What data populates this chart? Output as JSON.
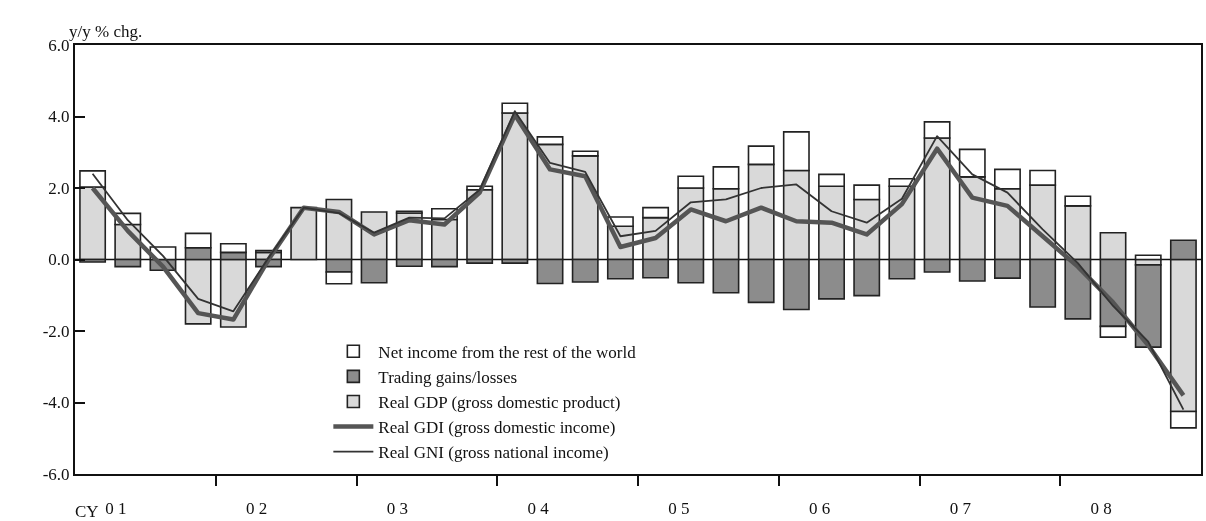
{
  "chart_data": {
    "type": "bar",
    "stacked": true,
    "ylabel": "y/y % chg.",
    "xlabel": "CY",
    "categories": [
      null,
      "0 1",
      null,
      null,
      null,
      "0 2",
      null,
      null,
      null,
      "0 3",
      null,
      null,
      null,
      "0 4",
      null,
      null,
      null,
      "0 5",
      null,
      null,
      null,
      "0 6",
      null,
      null,
      null,
      "0 7",
      null,
      null,
      null,
      "0 8",
      null,
      null
    ],
    "series": [
      {
        "name": "Real GDP (gross domestic product)",
        "color": "#d9d9d9",
        "values": [
          2.03,
          0.98,
          null,
          -1.8,
          -1.89,
          0.2,
          1.45,
          1.68,
          1.33,
          1.3,
          1.12,
          1.95,
          4.1,
          3.22,
          2.9,
          0.93,
          1.17,
          2.0,
          1.98,
          2.66,
          2.49,
          2.05,
          1.68,
          2.05,
          3.4,
          2.31,
          1.98,
          2.08,
          1.5,
          0.75,
          -0.15,
          -4.25
        ]
      },
      {
        "name": "Trading gains/losses",
        "color": "#8c8c8c",
        "values": [
          -0.07,
          -0.2,
          -0.3,
          0.33,
          0.2,
          -0.2,
          null,
          -0.35,
          -0.65,
          -0.19,
          -0.2,
          -0.1,
          -0.1,
          -0.67,
          -0.63,
          -0.54,
          -0.51,
          -0.65,
          -0.93,
          -1.2,
          -1.4,
          -1.1,
          -1.01,
          -0.54,
          -0.35,
          -0.6,
          -0.52,
          -1.33,
          -1.66,
          -1.87,
          -2.3,
          0.54
        ]
      },
      {
        "name": "Net income from the rest of the world",
        "color": "#ffffff",
        "values": [
          0.45,
          0.31,
          0.35,
          0.4,
          0.24,
          0.05,
          null,
          -0.33,
          null,
          0.05,
          0.3,
          0.1,
          0.27,
          0.21,
          0.13,
          0.26,
          0.28,
          0.33,
          0.61,
          0.51,
          1.08,
          0.33,
          0.4,
          0.21,
          0.45,
          0.77,
          0.54,
          0.41,
          0.27,
          -0.3,
          0.12,
          -0.46
        ]
      },
      {
        "name": "Real GDI (gross domestic income)",
        "type": "line",
        "color": "#555555",
        "values": [
          2.0,
          0.8,
          -0.2,
          -1.5,
          -1.68,
          0.0,
          1.45,
          1.33,
          0.7,
          1.1,
          0.98,
          1.87,
          4.05,
          2.52,
          2.33,
          0.35,
          0.6,
          1.4,
          1.07,
          1.45,
          1.07,
          1.03,
          0.7,
          1.55,
          3.1,
          1.73,
          1.5,
          0.65,
          -0.2,
          -1.2,
          -2.4,
          -3.8
        ]
      },
      {
        "name": "Real GNI (gross national income)",
        "type": "line",
        "color": "#333333",
        "values": [
          2.4,
          1.1,
          0.1,
          -1.1,
          -1.45,
          0.05,
          1.45,
          1.3,
          0.75,
          1.17,
          1.15,
          1.95,
          4.15,
          2.7,
          2.45,
          0.65,
          0.8,
          1.6,
          1.68,
          2.0,
          2.1,
          1.35,
          1.03,
          1.7,
          3.45,
          2.38,
          1.87,
          0.84,
          -0.1,
          -1.3,
          -2.3,
          -4.2
        ]
      }
    ],
    "ylim": [
      -6,
      6
    ],
    "yticks": [
      {
        "value": -6,
        "label": "-6.0"
      },
      {
        "value": -4,
        "label": "-4.0"
      },
      {
        "value": -2,
        "label": "-2.0"
      },
      {
        "value": 0,
        "label": "0.0"
      },
      {
        "value": 2,
        "label": "2.0"
      },
      {
        "value": 4,
        "label": "4.0"
      },
      {
        "value": 6,
        "label": "6.0"
      }
    ],
    "ref_lines": [
      {
        "axis": "y",
        "value": 0,
        "color": "#111111"
      }
    ],
    "grid": false,
    "legend": "bottom left",
    "marker": "none",
    "line_style": "solid"
  }
}
